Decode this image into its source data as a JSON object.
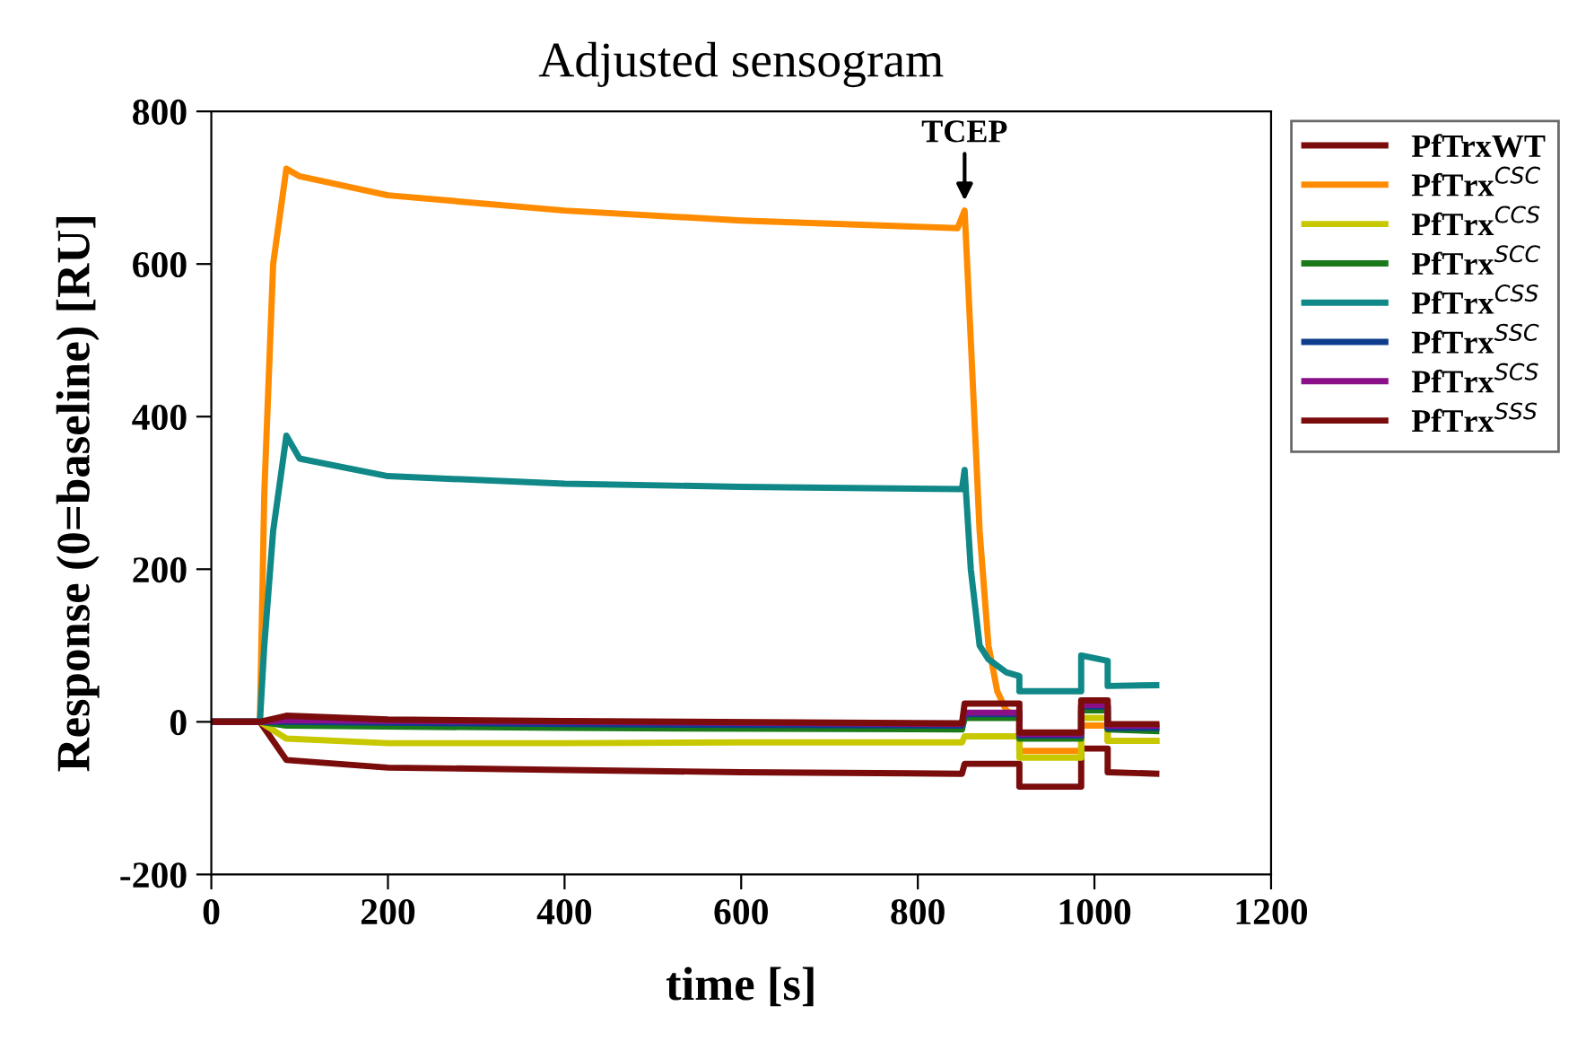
{
  "chart_data": {
    "type": "line",
    "title": "Adjusted sensogram",
    "xlabel": "time [s]",
    "ylabel": "Response (0=baseline) [RU]",
    "xlim": [
      0,
      1200
    ],
    "xticks": [
      0,
      200,
      400,
      600,
      800,
      1000,
      1200
    ],
    "ylim": [
      -200,
      800
    ],
    "yticks": [
      -200,
      0,
      200,
      400,
      600,
      800
    ],
    "grid": false,
    "legend": "right",
    "marker": "none",
    "line_style": "solid",
    "annotations": [
      {
        "text": "TCEP",
        "x": 853,
        "y": 670
      }
    ],
    "series": [
      {
        "name": "PfTrxWT",
        "color": "#7b0c0c",
        "x": [
          0,
          55,
          85,
          200,
          400,
          600,
          850,
          853,
          915,
          915,
          985,
          985,
          1015,
          1015,
          1070
        ],
        "values": [
          0,
          0,
          -50,
          -60,
          -63,
          -66,
          -68,
          -55,
          -55,
          -85,
          -85,
          -35,
          -35,
          -66,
          -68
        ]
      },
      {
        "name": "PfTrx$^{CSC}$",
        "color": "#ff8c00",
        "x": [
          0,
          55,
          60,
          70,
          85,
          100,
          200,
          400,
          600,
          845,
          853,
          860,
          870,
          880,
          890,
          900,
          915,
          915,
          985,
          985,
          1015,
          1015,
          1070
        ],
        "values": [
          0,
          0,
          300,
          600,
          725,
          715,
          690,
          670,
          657,
          647,
          670,
          500,
          250,
          100,
          40,
          15,
          5,
          -38,
          -38,
          -5,
          -5,
          -25,
          -25
        ]
      },
      {
        "name": "PfTrx$^{CCS}$",
        "color": "#c8c800",
        "x": [
          0,
          55,
          85,
          200,
          400,
          600,
          850,
          853,
          915,
          915,
          985,
          985,
          1015,
          1015,
          1070
        ],
        "values": [
          0,
          0,
          -22,
          -28,
          -28,
          -27,
          -27,
          -19,
          -19,
          -47,
          -47,
          5,
          5,
          -25,
          -25
        ]
      },
      {
        "name": "PfTrx$^{SCC}$",
        "color": "#1a7a1a",
        "x": [
          0,
          55,
          85,
          400,
          850,
          853,
          915,
          915,
          985,
          985,
          1015,
          1015,
          1070
        ],
        "values": [
          0,
          0,
          -5,
          -8,
          -10,
          5,
          5,
          -22,
          -22,
          15,
          15,
          -10,
          -12
        ]
      },
      {
        "name": "PfTrx$^{CSS}$",
        "color": "#108888",
        "x": [
          0,
          55,
          60,
          70,
          85,
          100,
          200,
          400,
          600,
          850,
          853,
          860,
          870,
          880,
          900,
          915,
          915,
          985,
          985,
          1015,
          1015,
          1070
        ],
        "values": [
          0,
          0,
          100,
          250,
          375,
          345,
          322,
          312,
          308,
          305,
          330,
          200,
          100,
          82,
          65,
          60,
          40,
          40,
          87,
          80,
          47,
          48
        ]
      },
      {
        "name": "PfTrx$^{SSC}$",
        "color": "#0d3d8c",
        "x": [
          0,
          55,
          85,
          400,
          850,
          853,
          915,
          915,
          985,
          985,
          1015,
          1015,
          1070
        ],
        "values": [
          0,
          0,
          0,
          -3,
          -5,
          10,
          10,
          -18,
          -18,
          20,
          20,
          -8,
          -8
        ]
      },
      {
        "name": "PfTrx$^{SCS}$",
        "color": "#8a108a",
        "x": [
          0,
          55,
          85,
          400,
          850,
          853,
          915,
          915,
          985,
          985,
          1015,
          1015,
          1070
        ],
        "values": [
          0,
          0,
          2,
          0,
          -3,
          12,
          12,
          -16,
          -16,
          22,
          22,
          -5,
          -5
        ]
      },
      {
        "name": "PfTrx$^{SSS}$",
        "color": "#7b0c0c",
        "x": [
          0,
          55,
          85,
          200,
          400,
          850,
          853,
          915,
          915,
          985,
          985,
          1015,
          1015,
          1070
        ],
        "values": [
          0,
          0,
          8,
          3,
          1,
          -2,
          24,
          24,
          -14,
          -14,
          28,
          28,
          -3,
          -3
        ]
      }
    ]
  }
}
